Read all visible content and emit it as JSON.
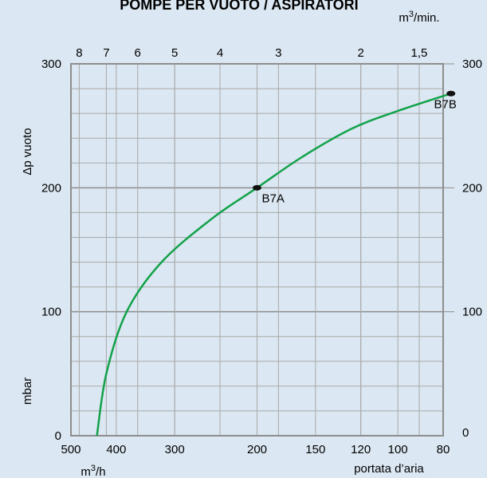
{
  "chart_data": {
    "type": "line",
    "title": "POMPE PER VUOTO / ASPIRATORI",
    "top_axis_unit": "m3/min.",
    "bottom_axis_unit": "m3/h",
    "xlabel": "portata d’aria",
    "ylabel": "Δp vuoto",
    "ylabel_unit": "mbar",
    "ylim": [
      0,
      300
    ],
    "y_ticks": [
      0,
      100,
      200,
      300
    ],
    "right_y_ticks": [
      100,
      200,
      300
    ],
    "right_y_zero": "0",
    "top_ticks": [
      {
        "label": "8",
        "m3min": 8
      },
      {
        "label": "7",
        "m3min": 7
      },
      {
        "label": "6",
        "m3min": 6
      },
      {
        "label": "5",
        "m3min": 5
      },
      {
        "label": "4",
        "m3min": 4
      },
      {
        "label": "3",
        "m3min": 3
      },
      {
        "label": "2",
        "m3min": 2
      },
      {
        "label": "1,5",
        "m3min": 1.5
      }
    ],
    "bottom_ticks": [
      {
        "label": "500",
        "m3h": 500
      },
      {
        "label": "400",
        "m3h": 400
      },
      {
        "label": "300",
        "m3h": 300
      },
      {
        "label": "200",
        "m3h": 200
      },
      {
        "label": "150",
        "m3h": 150
      },
      {
        "label": "120",
        "m3h": 120
      },
      {
        "label": "100",
        "m3h": 100
      },
      {
        "label": "80",
        "m3h": 80
      }
    ],
    "series": [
      {
        "color": "#12a24a",
        "points": [
          {
            "x": 440,
            "y": 0
          },
          {
            "x": 420,
            "y": 50
          },
          {
            "x": 380,
            "y": 100
          },
          {
            "x": 320,
            "y": 140
          },
          {
            "x": 250,
            "y": 175
          },
          {
            "x": 200,
            "y": 200
          },
          {
            "x": 160,
            "y": 225
          },
          {
            "x": 125,
            "y": 248
          },
          {
            "x": 100,
            "y": 262
          },
          {
            "x": 77,
            "y": 276
          }
        ]
      }
    ],
    "markers": [
      {
        "label": "B7A",
        "x": 200,
        "y": 200
      },
      {
        "label": "B7B",
        "x": 77,
        "y": 276
      }
    ]
  }
}
